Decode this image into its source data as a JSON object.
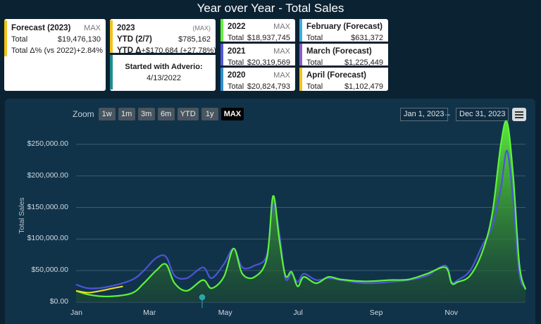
{
  "title": "Year over Year - Total Sales",
  "cards": {
    "forecast": {
      "title": "Forecast (2023)",
      "badge": "MAX",
      "total_label": "Total",
      "total_value": "$19,476,130",
      "delta_label": "Total Δ% (vs 2022)",
      "delta_value": "+2.84%",
      "accent": "#f2c318"
    },
    "ytd": {
      "title": "2023",
      "badge": "(MAX)",
      "ytd_label": "YTD (2/7)",
      "ytd_value": "$785,162",
      "delta_label": "YTD Δ",
      "delta_value": "+$170,684 (+27.78%)",
      "started_label": "Started with Adverio:",
      "started_date": "4/13/2022",
      "accent": "#f2c318",
      "accent2": "#1f8d8d"
    },
    "years": [
      {
        "title": "2022",
        "badge": "MAX",
        "total_label": "Total",
        "total_value": "$18,937,745",
        "accent": "#5df23a"
      },
      {
        "title": "2021",
        "badge": "MAX",
        "total_label": "Total",
        "total_value": "$20,319,569",
        "accent": "#5057d8"
      },
      {
        "title": "2020",
        "badge": "MAX",
        "total_label": "Total",
        "total_value": "$20,824,793",
        "accent": "#2a8fd0"
      }
    ],
    "months": [
      {
        "title": "February (Forecast)",
        "total_label": "Total",
        "total_value": "$631,372",
        "accent": "#3aaee0"
      },
      {
        "title": "March (Forecast)",
        "total_label": "Total",
        "total_value": "$1,225,449",
        "accent": "#8a5cc8"
      },
      {
        "title": "April (Forecast)",
        "total_label": "Total",
        "total_value": "$1,102,479",
        "accent": "#f2c318"
      }
    ]
  },
  "toolbar": {
    "zoom_label": "Zoom",
    "zoom_buttons": [
      "1w",
      "1m",
      "3m",
      "6m",
      "YTD",
      "1y",
      "MAX"
    ],
    "active": "MAX",
    "date_from": "Jan 1, 2023",
    "arrow": "→",
    "date_to": "Dec 31, 2023"
  },
  "chart_data": {
    "type": "area",
    "ylabel": "Total Sales",
    "yticks": [
      "$250,000.00",
      "$200,000.00",
      "$150,000.00",
      "$100,000.00",
      "$50,000.00",
      "$0.00"
    ],
    "ylim": [
      0,
      280000
    ],
    "xticks": [
      "Jan",
      "Mar",
      "May",
      "Jul",
      "Sep",
      "Nov"
    ],
    "xlim": [
      0,
      365
    ],
    "series": [
      {
        "name": "2022",
        "color": "#5df23a",
        "x": [
          0,
          10,
          25,
          45,
          55,
          65,
          73,
          80,
          90,
          103,
          110,
          120,
          128,
          135,
          145,
          155,
          160,
          165,
          170,
          175,
          180,
          185,
          195,
          205,
          215,
          235,
          255,
          270,
          285,
          300,
          305,
          310,
          320,
          330,
          338,
          345,
          350,
          355,
          360,
          365
        ],
        "y": [
          18000,
          12000,
          9000,
          14000,
          30000,
          50000,
          60000,
          30000,
          18000,
          35000,
          22000,
          40000,
          85000,
          45000,
          40000,
          70000,
          168000,
          100000,
          42000,
          48000,
          25000,
          40000,
          30000,
          40000,
          36000,
          33000,
          35000,
          36000,
          45000,
          55000,
          30000,
          32000,
          42000,
          80000,
          140000,
          250000,
          285000,
          200000,
          60000,
          20000
        ]
      },
      {
        "name": "2021",
        "color": "#4c55d6",
        "x": [
          0,
          10,
          25,
          45,
          55,
          65,
          73,
          80,
          90,
          103,
          110,
          120,
          128,
          135,
          145,
          155,
          160,
          165,
          170,
          175,
          180,
          185,
          195,
          205,
          215,
          235,
          255,
          270,
          285,
          300,
          305,
          310,
          320,
          330,
          338,
          345,
          350,
          355,
          360,
          365
        ],
        "y": [
          28000,
          22000,
          24000,
          35000,
          50000,
          70000,
          72000,
          42000,
          38000,
          55000,
          38000,
          60000,
          85000,
          55000,
          58000,
          75000,
          155000,
          110000,
          38000,
          45000,
          32000,
          45000,
          35000,
          38000,
          35000,
          30000,
          32000,
          35000,
          42000,
          58000,
          32000,
          35000,
          50000,
          90000,
          120000,
          180000,
          240000,
          160000,
          45000,
          22000
        ]
      },
      {
        "name": "2023",
        "color": "#f2e21a",
        "x": [
          0,
          10,
          20,
          30,
          38
        ],
        "y": [
          18000,
          15000,
          18000,
          22000,
          25000
        ]
      }
    ]
  }
}
